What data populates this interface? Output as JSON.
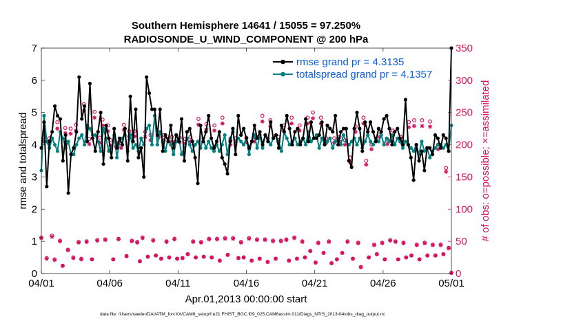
{
  "chart_data": {
    "type": "line",
    "title": "Southern Hemisphere 14641 / 15055 = 97.250%",
    "subtitle": "RADIOSONDE_U_WIND_COMPONENT @ 200 hPa",
    "xlabel": "Apr.01,2013 00:00:00 start",
    "ylabel": "rmse and totalspread",
    "y2label": "# of obs: o=possible; ×=assimilated",
    "footer": "data file: /Users/raeder/DAI/ATM_forcXX/CAM6_setup/f.e21.FHIST_BGC.f09_025.CAM6assim.011/Diags_NTrS_2013-04/obs_diag_output.nc",
    "xlim": [
      0,
      30
    ],
    "ylim": [
      0,
      7
    ],
    "y2lim": [
      0,
      350
    ],
    "xticks": [
      0,
      5,
      10,
      15,
      20,
      25,
      30
    ],
    "xtick_labels": [
      "04/01",
      "04/06",
      "04/11",
      "04/16",
      "04/21",
      "04/26",
      "05/01"
    ],
    "yticks": [
      0,
      1,
      2,
      3,
      4,
      5,
      6,
      7
    ],
    "ytick_labels": [
      "0",
      "1",
      "2",
      "3",
      "4",
      "5",
      "6",
      "7"
    ],
    "y2ticks": [
      0,
      50,
      100,
      150,
      200,
      250,
      300,
      350
    ],
    "y2tick_labels": [
      "0",
      "50",
      "100",
      "150",
      "200",
      "250",
      "300",
      "350"
    ],
    "legend_position": "top-right",
    "colors": {
      "rmse": "#000000",
      "spread": "#008080",
      "obs": "#d6125e",
      "legend_text": "#0a5fe0"
    },
    "series": [
      {
        "name": "rmse grand pr = 4.3135",
        "color": "#000000",
        "values": [
          3.9,
          4.7,
          2.7,
          4.1,
          4.4,
          5.2,
          4.9,
          4.8,
          3.5,
          4.3,
          2.5,
          3.7,
          3.9,
          4.4,
          6.1,
          4.8,
          5.2,
          4.1,
          5.9,
          4.2,
          3.8,
          4.4,
          5.0,
          3.4,
          4.6,
          4.2,
          3.6,
          4.5,
          3.9,
          4.2,
          4.0,
          4.5,
          3.5,
          5.5,
          4.1,
          5.1,
          3.6,
          3.9,
          3.0,
          6.1,
          5.6,
          5.1,
          5.1,
          4.3,
          5.1,
          3.8,
          4.3,
          4.1,
          4.6,
          3.9,
          4.3,
          4.1,
          4.8,
          3.5,
          4.4,
          4.5,
          4.1,
          3.6,
          2.8,
          4.6,
          4.1,
          4.4,
          4.9,
          4.2,
          3.9,
          4.1,
          4.4,
          3.6,
          3.4,
          3.1,
          4.1,
          4.5,
          3.7,
          4.9,
          4.3,
          4.5,
          4.2,
          3.9,
          4.1,
          4.6,
          4.2,
          4.4,
          4.0,
          4.3,
          4.1,
          4.7,
          4.2,
          4.3,
          3.9,
          4.6,
          4.4,
          4.9,
          4.5,
          4.0,
          4.4,
          4.5,
          4.0,
          4.2,
          4.8,
          4.1,
          4.7,
          4.2,
          4.2,
          4.3,
          4.7,
          4.0,
          4.6,
          4.5,
          4.4,
          4.9,
          4.0,
          4.4,
          4.5,
          4.5,
          3.5,
          3.3,
          4.5,
          5.0,
          4.5,
          3.8,
          4.7,
          4.4,
          4.7,
          4.4,
          4.1,
          4.5,
          4.4,
          4.8,
          4.9,
          4.5,
          4.0,
          4.4,
          4.5,
          4.2,
          4.0,
          5.4,
          4.0,
          3.6,
          2.9,
          4.0,
          3.5,
          3.8,
          3.2,
          3.9,
          3.9,
          3.7,
          4.3,
          4.2,
          3.9,
          4.3,
          4.2,
          3.8,
          7.0
        ]
      },
      {
        "name": "totalspread grand pr = 4.1357",
        "color": "#008080",
        "values": [
          3.2,
          4.9,
          4.1,
          3.9,
          4.2,
          4.0,
          3.8,
          4.4,
          4.2,
          3.9,
          4.1,
          3.7,
          3.7,
          4.0,
          4.2,
          4.3,
          4.0,
          4.6,
          4.5,
          4.3,
          4.3,
          4.1,
          3.8,
          4.5,
          4.2,
          3.8,
          3.9,
          4.3,
          3.6,
          4.1,
          4.2,
          4.3,
          3.8,
          4.3,
          3.9,
          4.0,
          3.8,
          4.2,
          4.0,
          4.5,
          4.6,
          4.0,
          4.9,
          4.0,
          4.4,
          4.1,
          3.8,
          4.2,
          4.0,
          3.7,
          4.1,
          4.2,
          3.7,
          3.9,
          4.2,
          4.0,
          3.8,
          4.0,
          4.1,
          3.9,
          4.2,
          3.9,
          4.1,
          3.9,
          3.8,
          4.0,
          3.8,
          4.0,
          4.3,
          3.7,
          4.2,
          4.4,
          4.0,
          4.2,
          4.1,
          4.0,
          4.2,
          3.7,
          4.1,
          4.3,
          3.9,
          4.3,
          3.9,
          4.3,
          4.2,
          4.0,
          4.2,
          4.3,
          4.1,
          3.8,
          4.4,
          4.2,
          4.0,
          4.1,
          4.2,
          4.0,
          4.1,
          4.2,
          4.0,
          4.4,
          4.1,
          4.2,
          4.3,
          3.9,
          4.2,
          4.0,
          4.1,
          4.2,
          3.9,
          4.1,
          4.2,
          4.0,
          4.3,
          4.1,
          4.0,
          4.1,
          4.2,
          4.0,
          4.2,
          3.9,
          4.1,
          4.3,
          4.1,
          4.0,
          4.2,
          4.1,
          4.3,
          4.0,
          4.2,
          4.1,
          4.3,
          4.0,
          4.2,
          4.1,
          3.9,
          4.1,
          4.0,
          3.9,
          3.8,
          4.0,
          3.7,
          4.1,
          3.8,
          3.9,
          3.6,
          3.8,
          3.9,
          4.0,
          4.0,
          3.9,
          4.0,
          3.8,
          4.6
        ]
      }
    ],
    "obs_series": [
      {
        "name": "possible (o)",
        "marker": "o",
        "values": [
          56,
          212,
          24,
          210,
          59,
          22,
          235,
          51,
          12,
          226,
          37,
          225,
          25,
          231,
          49,
          23,
          263,
          50,
          209,
          22,
          251,
          52,
          211,
          239,
          53,
          230,
          207,
          22,
          204,
          54,
          202,
          231,
          27,
          221,
          51,
          221,
          49,
          19,
          56,
          220,
          26,
          215,
          52,
          28,
          219,
          23,
          215,
          50,
          25,
          212,
          54,
          23,
          211,
          24,
          209,
          30,
          212,
          50,
          25,
          240,
          49,
          26,
          232,
          54,
          25,
          230,
          54,
          20,
          242,
          55,
          29,
          207,
          55,
          210,
          24,
          49,
          25,
          211,
          55,
          20,
          212,
          53,
          23,
          245,
          53,
          18,
          238,
          51,
          23,
          212,
          51,
          230,
          53,
          20,
          242,
          56,
          23,
          230,
          50,
          25,
          242,
          35,
          250,
          17,
          48,
          242,
          32,
          210,
          50,
          16,
          210,
          22,
          212,
          32,
          207,
          50,
          180,
          23,
          228,
          48,
          10,
          242,
          175,
          25,
          200,
          45,
          30,
          220,
          48,
          22,
          208,
          52,
          222,
          50,
          22,
          212,
          48,
          25,
          235,
          28,
          238,
          45,
          22,
          238,
          48,
          28,
          236,
          45,
          28,
          200,
          45,
          30,
          164,
          40,
          1
        ]
      },
      {
        "name": "assimilated (×)",
        "marker": "*",
        "values": [
          55,
          205,
          23,
          203,
          57,
          21,
          225,
          50,
          12,
          218,
          36,
          217,
          24,
          222,
          48,
          22,
          253,
          49,
          201,
          22,
          242,
          51,
          203,
          230,
          52,
          221,
          199,
          22,
          197,
          53,
          195,
          223,
          27,
          213,
          50,
          213,
          48,
          19,
          55,
          212,
          26,
          207,
          51,
          28,
          211,
          23,
          207,
          49,
          25,
          205,
          53,
          23,
          204,
          24,
          202,
          30,
          205,
          49,
          25,
          231,
          48,
          26,
          224,
          53,
          25,
          222,
          53,
          20,
          233,
          54,
          29,
          200,
          54,
          203,
          24,
          48,
          25,
          204,
          54,
          20,
          205,
          52,
          23,
          236,
          52,
          18,
          229,
          50,
          23,
          205,
          50,
          222,
          52,
          20,
          233,
          55,
          23,
          222,
          49,
          25,
          233,
          35,
          241,
          17,
          47,
          233,
          32,
          203,
          49,
          16,
          203,
          22,
          205,
          32,
          200,
          49,
          173,
          23,
          220,
          47,
          10,
          233,
          169,
          25,
          193,
          44,
          30,
          212,
          47,
          22,
          201,
          51,
          214,
          49,
          22,
          205,
          47,
          25,
          227,
          28,
          229,
          44,
          22,
          229,
          47,
          28,
          228,
          44,
          28,
          193,
          44,
          30,
          158,
          39,
          1
        ]
      }
    ]
  }
}
